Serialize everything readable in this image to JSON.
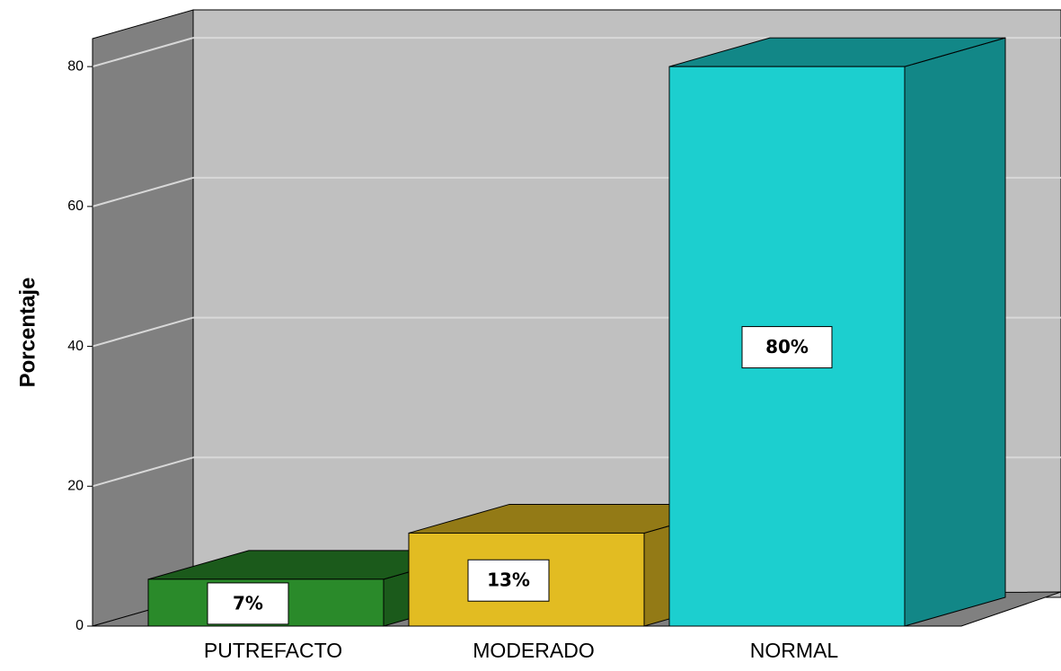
{
  "chart_data": {
    "type": "bar3d",
    "y_label": "Porcentaje",
    "categories": [
      "PUTREFACTO",
      "MODERADO",
      "NORMAL"
    ],
    "values": [
      6.7,
      13.3,
      80
    ],
    "value_labels": [
      "7%",
      "13%",
      "80%"
    ],
    "colors": [
      "#2a8a2a",
      "#e2bc22",
      "#1ccfcf"
    ],
    "ylim": [
      0,
      84
    ],
    "yticks": [
      0,
      20,
      40,
      60,
      80
    ],
    "grid": true
  }
}
